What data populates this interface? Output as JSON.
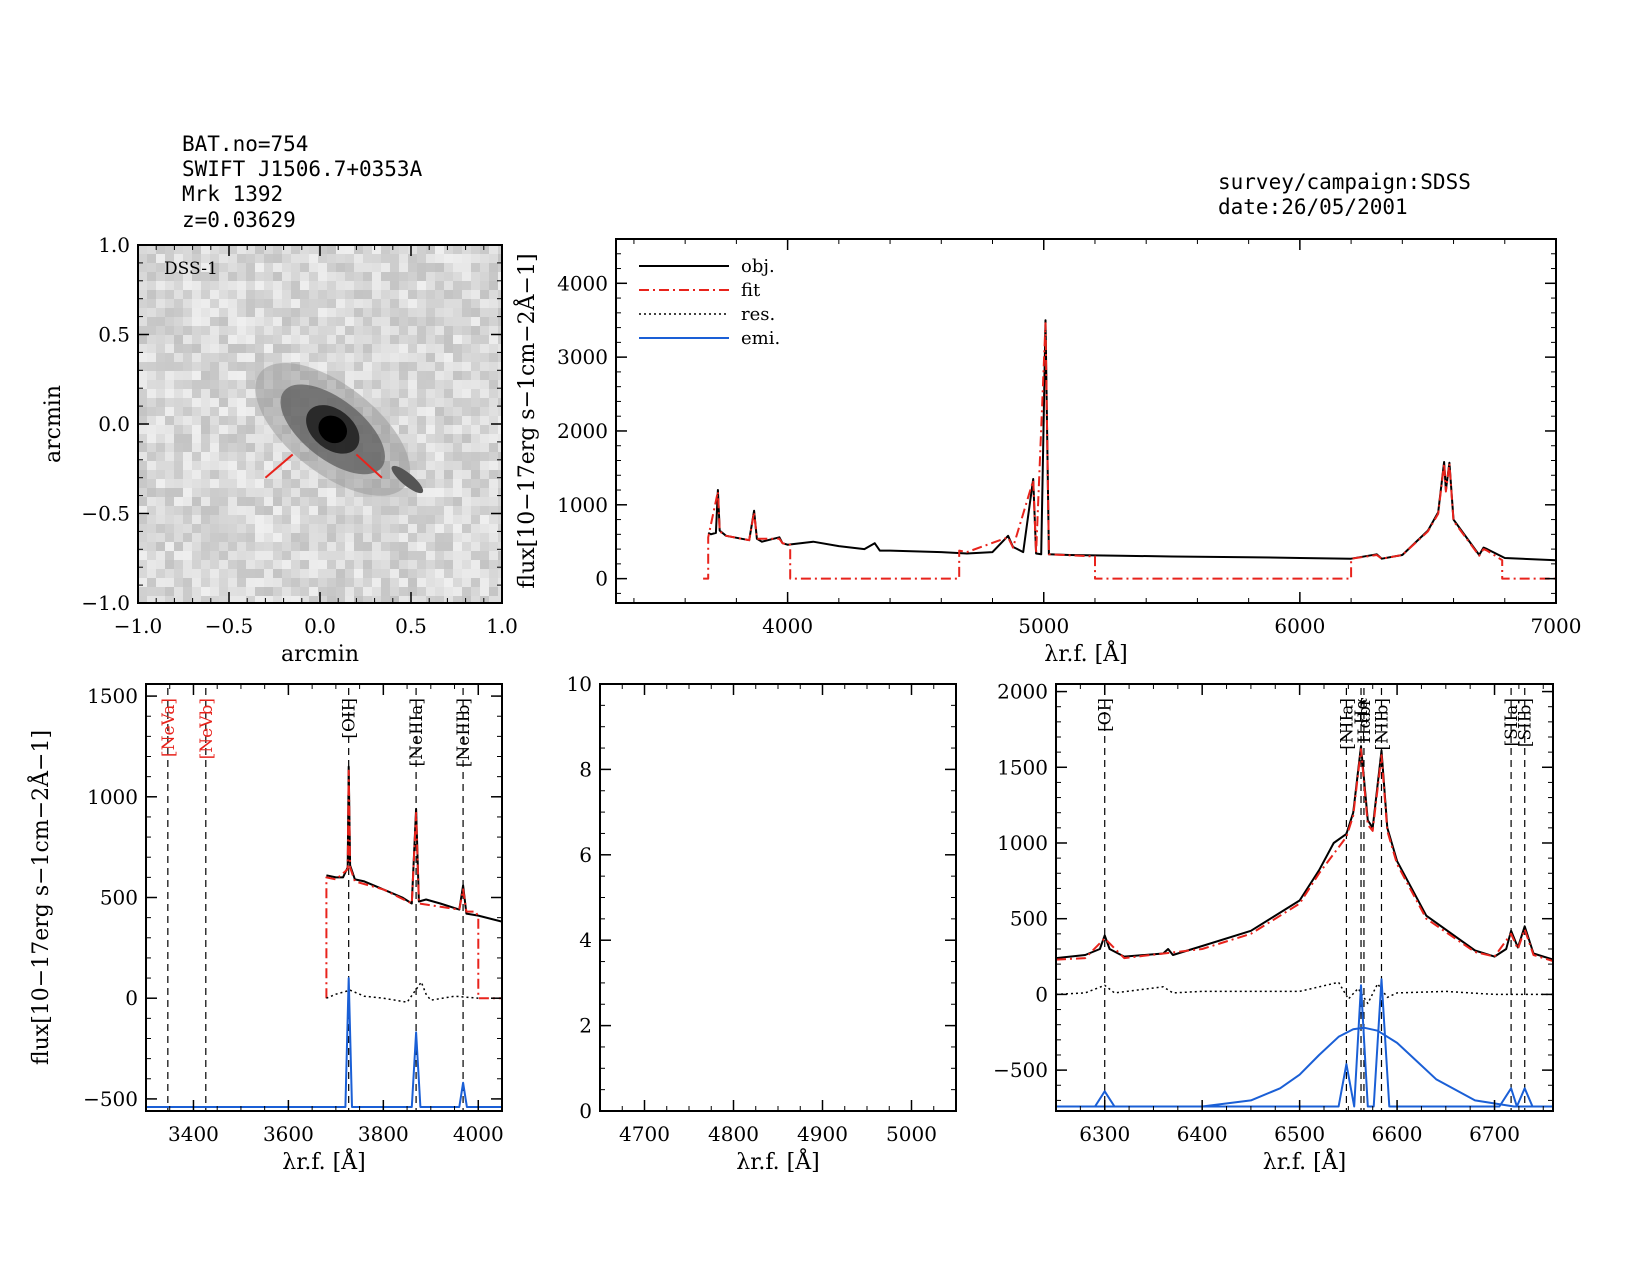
{
  "header": {
    "lines": [
      "BAT.no=754",
      "SWIFT J1506.7+0353A",
      "Mrk 1392",
      "z=0.03629"
    ],
    "survey": "survey/campaign:SDSS",
    "date": "date:26/05/2001"
  },
  "colors": {
    "obj": "#000000",
    "fit": "#e8231c",
    "res": "#000000",
    "emi": "#1a5fd6"
  },
  "chart_data": [
    {
      "type": "image",
      "panel": "dss-image",
      "label": "DSS-1",
      "xlabel": "arcmin",
      "ylabel": "arcmin",
      "xlim": [
        -1.0,
        1.0
      ],
      "ylim": [
        -1.0,
        1.0
      ],
      "xticks": [
        "−1.0",
        "−0.5",
        "0.0",
        "0.5",
        "1.0"
      ],
      "yticks": [
        "−1.0",
        "−0.5",
        "0.0",
        "0.5",
        "1.0"
      ]
    },
    {
      "type": "line",
      "panel": "full-spectrum",
      "xlabel": "λr.f. [Å]",
      "ylabel": "flux[10−17erg s−1cm−2Å−1]",
      "xlim": [
        3330,
        7000
      ],
      "ylim": [
        -330,
        4600
      ],
      "xticks": [
        "4000",
        "5000",
        "6000",
        "7000"
      ],
      "yticks": [
        "0",
        "1000",
        "2000",
        "3000",
        "4000"
      ],
      "legend": {
        "position": "top-left",
        "entries": [
          "obj.",
          "fit",
          "res.",
          "emi."
        ]
      },
      "series": [
        {
          "name": "obj.",
          "x": [
            3690,
            3700,
            3720,
            3728,
            3735,
            3760,
            3850,
            3869,
            3880,
            3900,
            3968,
            3980,
            4000,
            4100,
            4200,
            4300,
            4340,
            4360,
            4400,
            4600,
            4700,
            4800,
            4861,
            4880,
            4920,
            4959,
            4970,
            4990,
            5007,
            5020,
            5100,
            5300,
            5500,
            5800,
            6000,
            6200,
            6300,
            6320,
            6400,
            6500,
            6540,
            6563,
            6570,
            6584,
            6600,
            6700,
            6717,
            6731,
            6800,
            7000
          ],
          "y": [
            620,
            600,
            620,
            1200,
            650,
            580,
            520,
            920,
            540,
            500,
            560,
            480,
            460,
            500,
            440,
            400,
            480,
            380,
            380,
            360,
            340,
            360,
            580,
            430,
            360,
            1350,
            340,
            330,
            3500,
            330,
            320,
            310,
            300,
            290,
            280,
            270,
            330,
            270,
            320,
            650,
            900,
            1580,
            1200,
            1570,
            800,
            320,
            420,
            400,
            280,
            250
          ]
        },
        {
          "name": "fit",
          "x": [
            3670,
            3690,
            3690,
            3728,
            3735,
            3760,
            3850,
            3869,
            3880,
            3968,
            3980,
            4000,
            4010,
            4010,
            4670,
            4670,
            4700,
            4861,
            4880,
            4959,
            4970,
            5007,
            5020,
            5200,
            5200,
            6200,
            6200,
            6300,
            6320,
            6400,
            6500,
            6540,
            6563,
            6570,
            6584,
            6600,
            6700,
            6717,
            6731,
            6790,
            6790,
            7000
          ],
          "y": [
            0,
            0,
            560,
            1180,
            640,
            580,
            520,
            900,
            540,
            540,
            480,
            460,
            460,
            0,
            0,
            380,
            360,
            560,
            420,
            1330,
            340,
            3460,
            330,
            300,
            0,
            0,
            270,
            320,
            270,
            320,
            640,
            880,
            1560,
            1180,
            1560,
            780,
            310,
            400,
            380,
            250,
            0,
            0
          ]
        }
      ]
    },
    {
      "type": "line",
      "panel": "blue-zoom",
      "xlabel": "λr.f. [Å]",
      "ylabel": "flux[10−17erg s−1cm−2Å−1]",
      "xlim": [
        3300,
        4050
      ],
      "ylim": [
        -560,
        1560
      ],
      "xticks": [
        "3400",
        "3600",
        "3800",
        "4000"
      ],
      "yticks": [
        "−500",
        "0",
        "500",
        "1000",
        "1500"
      ],
      "lines": [
        {
          "label": "[NeVa]",
          "x": 3346,
          "color": "red"
        },
        {
          "label": "[NeVb]",
          "x": 3426,
          "color": "red"
        },
        {
          "label": "[OII]",
          "x": 3727,
          "color": "black"
        },
        {
          "label": "[NeIIIa]",
          "x": 3869,
          "color": "black"
        },
        {
          "label": "[NeIIIb]",
          "x": 3968,
          "color": "black"
        }
      ],
      "series": [
        {
          "name": "obj.",
          "x": [
            3680,
            3700,
            3715,
            3725,
            3727,
            3730,
            3740,
            3760,
            3800,
            3840,
            3860,
            3869,
            3875,
            3890,
            3920,
            3960,
            3968,
            3975,
            4000,
            4050
          ],
          "y": [
            610,
            600,
            600,
            650,
            1150,
            660,
            590,
            580,
            540,
            500,
            470,
            940,
            480,
            490,
            470,
            440,
            560,
            420,
            410,
            380
          ]
        },
        {
          "name": "fit",
          "x": [
            3680,
            3680,
            3700,
            3725,
            3727,
            3730,
            3740,
            3800,
            3860,
            3869,
            3875,
            3960,
            3968,
            3975,
            3995,
            4000,
            4000,
            4050
          ],
          "y": [
            0,
            600,
            590,
            640,
            1130,
            650,
            580,
            540,
            470,
            920,
            470,
            440,
            540,
            430,
            430,
            400,
            0,
            0
          ]
        },
        {
          "name": "res.",
          "x": [
            3680,
            3700,
            3730,
            3760,
            3800,
            3850,
            3880,
            3890,
            3900,
            3950,
            4000
          ],
          "y": [
            0,
            20,
            40,
            10,
            0,
            -20,
            80,
            20,
            -10,
            10,
            0
          ]
        },
        {
          "name": "emi.",
          "x": [
            3300,
            3720,
            3727,
            3734,
            3860,
            3869,
            3878,
            3960,
            3968,
            3976,
            4050
          ],
          "y": [
            -540,
            -540,
            100,
            -540,
            -540,
            -170,
            -540,
            -540,
            -420,
            -540,
            -540
          ]
        }
      ]
    },
    {
      "type": "line",
      "panel": "hbeta-zoom",
      "xlabel": "λr.f. [Å]",
      "ylabel": "",
      "xlim": [
        4650,
        5050
      ],
      "ylim": [
        0,
        10
      ],
      "xticks": [
        "4700",
        "4800",
        "4900",
        "5000"
      ],
      "yticks": [
        "0",
        "2",
        "4",
        "6",
        "8",
        "10"
      ],
      "series": []
    },
    {
      "type": "line",
      "panel": "halpha-zoom",
      "xlabel": "λr.f. [Å]",
      "ylabel": "",
      "xlim": [
        6250,
        6760
      ],
      "ylim": [
        -770,
        2050
      ],
      "xticks": [
        "6300",
        "6400",
        "6500",
        "6600",
        "6700"
      ],
      "yticks": [
        "−500",
        "0",
        "500",
        "1000",
        "1500",
        "2000"
      ],
      "lines": [
        {
          "label": "[OI]",
          "x": 6300,
          "color": "black"
        },
        {
          "label": "[NIIa]",
          "x": 6548,
          "color": "black"
        },
        {
          "label": "Hα",
          "x": 6563,
          "color": "black"
        },
        {
          "label": "Hαbr",
          "x": 6566,
          "color": "black"
        },
        {
          "label": "[NIIb]",
          "x": 6584,
          "color": "black"
        },
        {
          "label": "[SIIa]",
          "x": 6717,
          "color": "black"
        },
        {
          "label": "[SIIb]",
          "x": 6731,
          "color": "black"
        }
      ],
      "series": [
        {
          "name": "obj.",
          "x": [
            6250,
            6280,
            6295,
            6300,
            6305,
            6320,
            6360,
            6365,
            6370,
            6400,
            6450,
            6500,
            6520,
            6535,
            6548,
            6555,
            6563,
            6570,
            6575,
            6584,
            6590,
            6600,
            6630,
            6680,
            6700,
            6712,
            6717,
            6724,
            6731,
            6740,
            6760
          ],
          "y": [
            240,
            260,
            300,
            390,
            300,
            250,
            270,
            300,
            260,
            320,
            420,
            620,
            820,
            1000,
            1060,
            1200,
            1640,
            1150,
            1100,
            1610,
            1100,
            880,
            520,
            290,
            250,
            300,
            420,
            310,
            450,
            270,
            230
          ]
        },
        {
          "name": "fit",
          "x": [
            6250,
            6280,
            6300,
            6320,
            6400,
            6450,
            6500,
            6520,
            6548,
            6555,
            6563,
            6570,
            6575,
            6584,
            6590,
            6600,
            6630,
            6680,
            6700,
            6717,
            6724,
            6731,
            6740,
            6760
          ],
          "y": [
            230,
            240,
            370,
            240,
            300,
            400,
            600,
            800,
            1040,
            1180,
            1620,
            1120,
            1080,
            1580,
            1080,
            860,
            500,
            280,
            250,
            400,
            300,
            430,
            260,
            220
          ]
        },
        {
          "name": "res.",
          "x": [
            6250,
            6280,
            6300,
            6310,
            6360,
            6370,
            6400,
            6500,
            6540,
            6550,
            6560,
            6570,
            6580,
            6590,
            6600,
            6650,
            6700,
            6760
          ],
          "y": [
            0,
            10,
            60,
            10,
            50,
            10,
            20,
            20,
            80,
            -30,
            40,
            -60,
            70,
            -20,
            10,
            20,
            0,
            0
          ]
        },
        {
          "name": "emi.",
          "x": [
            6250,
            6290,
            6300,
            6310,
            6540,
            6548,
            6556,
            6556,
            6563,
            6570,
            6576,
            6584,
            6592,
            6705,
            6717,
            6723,
            6731,
            6739,
            6760
          ],
          "y": [
            -740,
            -740,
            -640,
            -740,
            -740,
            -460,
            -740,
            -740,
            60,
            -740,
            -740,
            100,
            -740,
            -740,
            -620,
            -740,
            -620,
            -740,
            -740
          ]
        },
        {
          "name": "emi.",
          "x": [
            6250,
            6400,
            6450,
            6480,
            6500,
            6520,
            6540,
            6555,
            6566,
            6580,
            6600,
            6620,
            6640,
            6680,
            6720,
            6760
          ],
          "y": [
            -740,
            -740,
            -700,
            -620,
            -530,
            -400,
            -280,
            -230,
            -220,
            -240,
            -320,
            -440,
            -560,
            -700,
            -740,
            -740
          ]
        }
      ]
    }
  ]
}
